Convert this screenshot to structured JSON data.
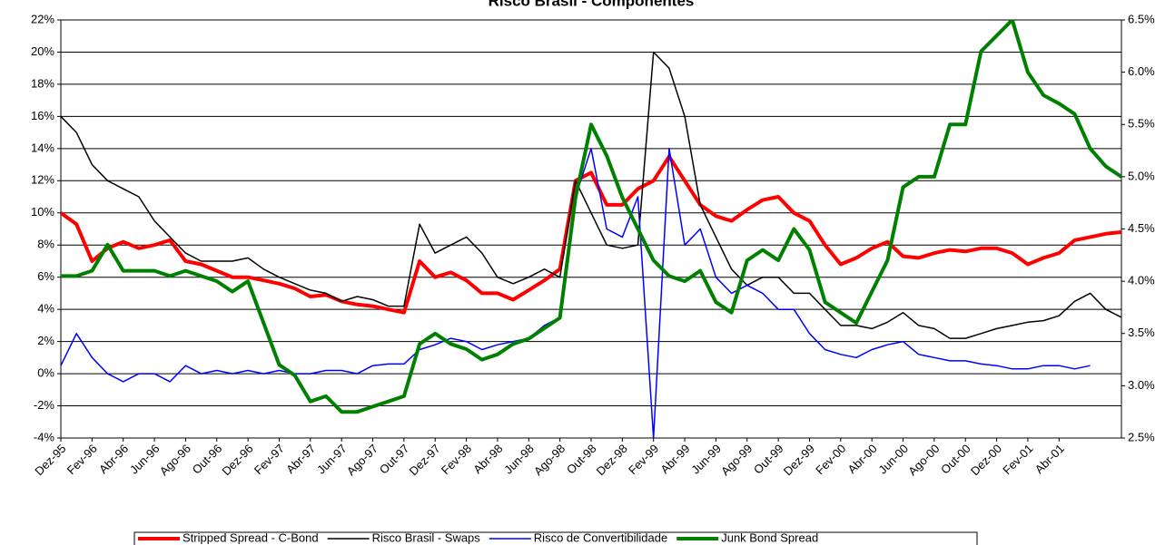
{
  "chart_data": {
    "type": "line",
    "title": "Risco Brasil - Componentes",
    "categories": [
      "Dez-95",
      null,
      "Fev-96",
      null,
      "Abr-96",
      null,
      "Jun-96",
      null,
      "Ago-96",
      null,
      "Out-96",
      null,
      "Dez-96",
      null,
      "Fev-97",
      null,
      "Abr-97",
      null,
      "Jun-97",
      null,
      "Ago-97",
      null,
      "Out-97",
      null,
      "Dez-97",
      null,
      "Fev-98",
      null,
      "Abr-98",
      null,
      "Jun-98",
      null,
      "Ago-98",
      null,
      "Out-98",
      null,
      "Dez-98",
      null,
      "Fev-99",
      null,
      "Abr-99",
      null,
      "Jun-99",
      null,
      "Ago-99",
      null,
      "Out-99",
      null,
      "Dez-99",
      null,
      "Fev-00",
      null,
      "Abr-00",
      null,
      "Jun-00",
      null,
      "Ago-00",
      null,
      "Out-00",
      null,
      "Dez-00",
      null,
      "Fev-01",
      null,
      "Abr-01",
      null,
      null,
      null,
      null
    ],
    "series": [
      {
        "name": "Stripped Spread - C-Bond",
        "color": "#ff0000",
        "width": 4,
        "values": [
          10,
          9.3,
          7,
          7.8,
          8.2,
          7.8,
          8,
          8.3,
          7,
          6.8,
          6.4,
          6,
          6,
          5.8,
          5.6,
          5.3,
          4.8,
          4.9,
          4.5,
          4.3,
          4.2,
          4,
          3.8,
          7,
          6,
          6.3,
          5.8,
          5,
          5,
          4.6,
          5.2,
          5.8,
          6.5,
          12,
          12.5,
          10.5,
          10.5,
          11.5,
          12,
          13.5,
          12,
          10.5,
          9.8,
          9.5,
          10.2,
          10.8,
          11,
          10,
          9.5,
          8,
          6.8,
          7.2,
          7.8,
          8.2,
          7.3,
          7.2,
          7.5,
          7.7,
          7.6,
          7.8,
          7.8,
          7.5,
          6.8,
          7.2,
          7.5,
          8.3,
          8.5,
          8.7,
          8.8
        ]
      },
      {
        "name": "Risco Brasil - Swaps",
        "color": "#000000",
        "width": 1.5,
        "values": [
          16,
          15,
          13,
          12,
          11.5,
          11,
          9.5,
          8.5,
          7.5,
          7,
          7,
          7,
          7.2,
          6.5,
          6,
          5.6,
          5.2,
          5,
          4.5,
          4.8,
          4.6,
          4.2,
          4.2,
          9.3,
          7.5,
          8,
          8.5,
          7.5,
          6,
          5.6,
          6,
          6.5,
          6,
          12,
          10,
          8,
          7.8,
          8,
          20,
          19,
          16,
          10.5,
          8.5,
          6.5,
          5.5,
          6,
          6,
          5,
          5,
          4,
          3,
          3,
          2.8,
          3.2,
          3.8,
          3,
          2.8,
          2.2,
          2.2,
          2.5,
          2.8,
          3,
          3.2,
          3.3,
          3.6,
          4.5,
          5,
          4,
          3.5
        ]
      },
      {
        "name": "Risco de Convertibilidade",
        "color": "#0000ff",
        "width": 1.5,
        "values": [
          0.5,
          2.5,
          1,
          0,
          -0.5,
          0,
          0,
          -0.5,
          0.5,
          0,
          0.2,
          0,
          0.2,
          0,
          0.2,
          0,
          0,
          0.2,
          0.2,
          0,
          0.5,
          0.6,
          0.6,
          1.5,
          1.8,
          2.2,
          2,
          1.5,
          1.8,
          2,
          2.2,
          3,
          3.5,
          11,
          14,
          9,
          8.5,
          11,
          -4,
          14,
          8,
          9,
          6,
          5,
          5.5,
          5,
          4,
          4,
          2.5,
          1.5,
          1.2,
          1,
          1.5,
          1.8,
          2,
          1.2,
          1,
          0.8,
          0.8,
          0.6,
          0.5,
          0.3,
          0.3,
          0.5,
          0.5,
          0.3,
          0.5,
          null,
          null
        ]
      },
      {
        "name": "Junk Bond Spread",
        "color": "#008000",
        "width": 4,
        "axis": "y2",
        "values": [
          4.05,
          4.05,
          4.1,
          4.35,
          4.1,
          4.1,
          4.1,
          4.05,
          4.1,
          4.05,
          4,
          3.9,
          4,
          3.6,
          3.2,
          3.1,
          2.85,
          2.9,
          2.75,
          2.75,
          2.8,
          2.85,
          2.9,
          3.4,
          3.5,
          3.4,
          3.35,
          3.25,
          3.3,
          3.4,
          3.45,
          3.55,
          3.65,
          4.8,
          5.5,
          5.2,
          4.8,
          4.5,
          4.2,
          4.05,
          4,
          4.1,
          3.8,
          3.7,
          4.2,
          4.3,
          4.2,
          4.5,
          4.3,
          3.8,
          3.7,
          3.6,
          3.9,
          4.2,
          4.9,
          5,
          5,
          5.5,
          5.5,
          6.2,
          6.35,
          6.5,
          6,
          5.78,
          5.7,
          5.6,
          5.27,
          5.1,
          5
        ]
      }
    ],
    "ylim": [
      -4,
      22
    ],
    "yticks": [
      {
        "value": -4,
        "label": "-4%"
      },
      {
        "value": -2,
        "label": "-2%"
      },
      {
        "value": 0,
        "label": "0%"
      },
      {
        "value": 2,
        "label": "2%"
      },
      {
        "value": 4,
        "label": "4%"
      },
      {
        "value": 6,
        "label": "6%"
      },
      {
        "value": 8,
        "label": "8%"
      },
      {
        "value": 10,
        "label": "10%"
      },
      {
        "value": 12,
        "label": "12%"
      },
      {
        "value": 14,
        "label": "14%"
      },
      {
        "value": 16,
        "label": "16%"
      },
      {
        "value": 18,
        "label": "18%"
      },
      {
        "value": 20,
        "label": "20%"
      },
      {
        "value": 22,
        "label": "22%"
      }
    ],
    "y2lim": [
      2.5,
      6.5
    ],
    "y2ticks": [
      {
        "value": 2.5,
        "label": "2.5%"
      },
      {
        "value": 3,
        "label": "3.0%"
      },
      {
        "value": 3.5,
        "label": "3.5%"
      },
      {
        "value": 4,
        "label": "4.0%"
      },
      {
        "value": 4.5,
        "label": "4.5%"
      },
      {
        "value": 5,
        "label": "5.0%"
      },
      {
        "value": 5.5,
        "label": "5.5%"
      },
      {
        "value": 6,
        "label": "6.0%"
      },
      {
        "value": 6.5,
        "label": "6.5%"
      }
    ],
    "grid": true
  }
}
